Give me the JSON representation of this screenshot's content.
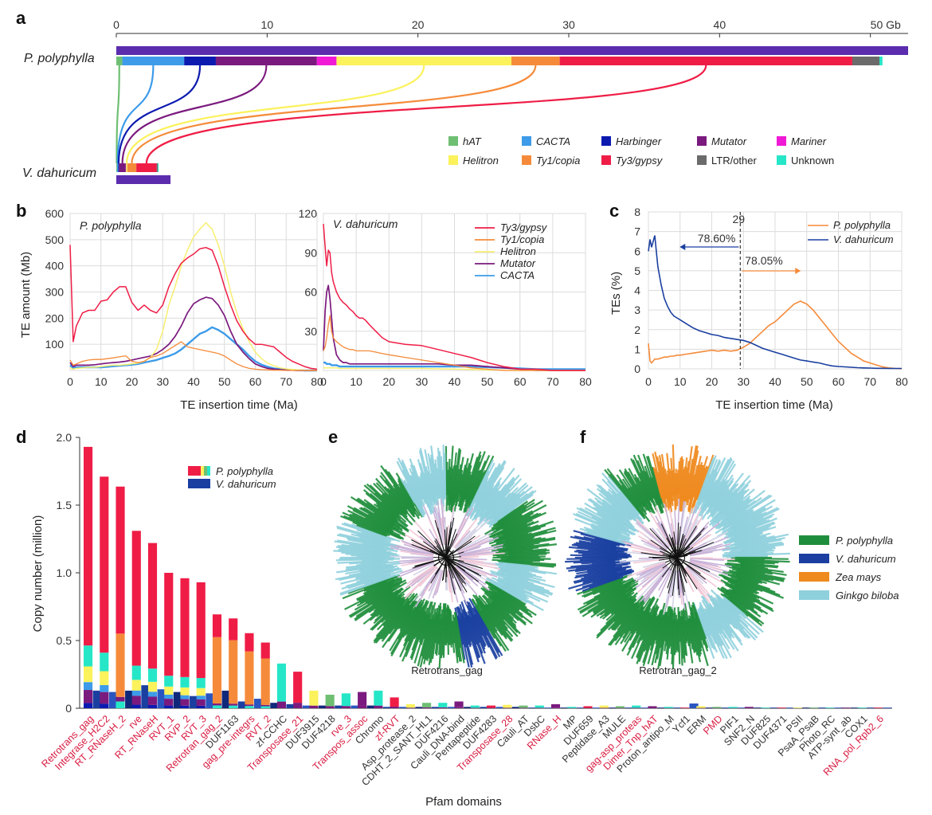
{
  "colors": {
    "hAT": "#6fbf73",
    "CACTA": "#3d9be9",
    "Harbinger": "#0c1ab0",
    "Mutator": "#7b1a7e",
    "Mariner": "#f01ad6",
    "Helitron": "#fbf25c",
    "Ty1/copia": "#f58b3a",
    "Ty3/gypsy": "#ef1d46",
    "LTR/other": "#6b6b6b",
    "Unknown": "#26e6c8",
    "genome": "#5b2cae",
    "pp_tree": "#1f8e3c",
    "vd_tree": "#1a3fa0",
    "zm_tree": "#ee8a1e",
    "gb_tree": "#8fd0dd"
  },
  "panel_labels": [
    "a",
    "b",
    "c",
    "d",
    "e",
    "f"
  ],
  "chart_data": [
    {
      "id": "a",
      "type": "bar",
      "title": "",
      "xlabel": "",
      "x_ticks": [
        "0",
        "10",
        "20",
        "30",
        "40",
        "50 Gb"
      ],
      "xlim": [
        0,
        52.5
      ],
      "genome_labels": [
        "P. polyphylla",
        "V. dahuricum"
      ],
      "genome_size_gb": {
        "P. polyphylla": 52.5,
        "V. dahuricum": 3.6
      },
      "segments_gb": {
        "P. polyphylla": [
          [
            "hAT",
            0.4
          ],
          [
            "CACTA",
            4.1
          ],
          [
            "Harbinger",
            2.1
          ],
          [
            "Mutator",
            6.7
          ],
          [
            "Mariner",
            1.3
          ],
          [
            "Helitron",
            11.6
          ],
          [
            "Ty1/copia",
            3.2
          ],
          [
            "Ty3/gypsy",
            19.4
          ],
          [
            "LTR/other",
            1.8
          ],
          [
            "Unknown",
            0.2
          ]
        ],
        "V. dahuricum": [
          [
            "hAT",
            0.05
          ],
          [
            "CACTA",
            0.08
          ],
          [
            "Harbinger",
            0.05
          ],
          [
            "Mutator",
            0.45
          ],
          [
            "Mariner",
            0.02
          ],
          [
            "Helitron",
            0.08
          ],
          [
            "Ty1/copia",
            0.6
          ],
          [
            "Ty3/gypsy",
            1.35
          ],
          [
            "LTR/other",
            0.08
          ],
          [
            "Unknown",
            0.05
          ]
        ]
      },
      "legend": [
        "hAT",
        "CACTA",
        "Harbinger",
        "Mutator",
        "Mariner",
        "Helitron",
        "Ty1/copia",
        "Ty3/gypsy",
        "LTR/other",
        "Unknown"
      ]
    },
    {
      "id": "b",
      "type": "line",
      "xlabel": "TE insertion time (Ma)",
      "ylabel": "TE amount (Mb)",
      "legend": [
        "Ty3/gypsy",
        "Ty1/copia",
        "Helitron",
        "Mutator",
        "CACTA"
      ],
      "left": {
        "label": "P. polyphylla",
        "xlim": [
          0,
          80
        ],
        "ylim": [
          0,
          600
        ],
        "x_ticks": [
          "0",
          "10",
          "20",
          "30",
          "40",
          "50",
          "60",
          "70",
          "80"
        ],
        "y_ticks": [
          "100",
          "200",
          "300",
          "400",
          "500",
          "600"
        ],
        "x": [
          0,
          1,
          2,
          4,
          6,
          8,
          10,
          12,
          14,
          16,
          18,
          20,
          22,
          24,
          26,
          28,
          30,
          32,
          34,
          36,
          38,
          40,
          42,
          44,
          46,
          48,
          50,
          52,
          54,
          56,
          58,
          60,
          62,
          64,
          66,
          68,
          70,
          72,
          74,
          76,
          78,
          80
        ],
        "series": [
          {
            "name": "Ty3/gypsy",
            "values": [
              480,
              110,
              170,
              220,
              230,
              230,
              265,
              270,
              300,
              320,
              320,
              260,
              230,
              250,
              230,
              220,
              250,
              320,
              370,
              410,
              430,
              445,
              465,
              470,
              460,
              400,
              320,
              250,
              190,
              150,
              120,
              100,
              100,
              95,
              90,
              70,
              50,
              35,
              25,
              15,
              8,
              5
            ]
          },
          {
            "name": "Ty1/copia",
            "values": [
              40,
              20,
              25,
              35,
              40,
              42,
              42,
              45,
              48,
              52,
              56,
              35,
              30,
              35,
              50,
              55,
              65,
              80,
              95,
              110,
              90,
              85,
              80,
              75,
              70,
              65,
              55,
              40,
              25,
              15,
              8,
              5,
              3,
              2,
              1,
              1,
              0,
              0,
              0,
              0,
              0,
              0
            ]
          },
          {
            "name": "Helitron",
            "values": [
              10,
              5,
              8,
              10,
              12,
              12,
              15,
              18,
              20,
              20,
              22,
              25,
              28,
              35,
              50,
              80,
              150,
              250,
              320,
              400,
              460,
              510,
              540,
              565,
              540,
              480,
              400,
              300,
              220,
              160,
              110,
              70,
              45,
              28,
              18,
              10,
              6,
              4,
              2,
              1,
              0,
              0
            ]
          },
          {
            "name": "Mutator",
            "values": [
              30,
              15,
              20,
              20,
              20,
              22,
              25,
              28,
              30,
              32,
              35,
              40,
              45,
              50,
              55,
              65,
              80,
              100,
              130,
              170,
              220,
              255,
              270,
              280,
              275,
              250,
              210,
              150,
              100,
              70,
              45,
              25,
              15,
              8,
              5,
              3,
              2,
              1,
              0,
              0,
              0,
              0
            ]
          },
          {
            "name": "CACTA",
            "values": [
              20,
              10,
              12,
              12,
              12,
              12,
              12,
              14,
              16,
              18,
              20,
              22,
              25,
              30,
              35,
              40,
              48,
              55,
              65,
              80,
              100,
              120,
              140,
              150,
              165,
              155,
              140,
              120,
              100,
              80,
              55,
              35,
              22,
              14,
              8,
              5,
              3,
              2,
              1,
              0,
              0,
              0
            ]
          }
        ]
      },
      "right": {
        "label": "V. dahuricum",
        "xlim": [
          0,
          80
        ],
        "ylim": [
          0,
          120
        ],
        "x_ticks": [
          "0",
          "10",
          "20",
          "30",
          "40",
          "50",
          "60",
          "70",
          "80"
        ],
        "y_ticks": [
          "30",
          "60",
          "90",
          "120"
        ],
        "x": [
          0,
          0.5,
          1,
          1.5,
          2,
          2.5,
          3,
          4,
          5,
          6,
          7,
          8,
          9,
          10,
          11,
          12,
          13,
          14,
          16,
          18,
          20,
          25,
          30,
          35,
          40,
          45,
          50,
          55,
          60,
          65,
          70,
          75,
          80
        ],
        "series": [
          {
            "name": "Ty3/gypsy",
            "values": [
              112,
              95,
              80,
              92,
              90,
              75,
              68,
              60,
              55,
              52,
              50,
              47,
              45,
              42,
              40,
              40,
              38,
              35,
              30,
              25,
              22,
              20,
              19,
              16,
              13,
              10,
              6,
              3,
              1,
              1,
              0,
              0,
              0
            ]
          },
          {
            "name": "Ty1/copia",
            "values": [
              15,
              18,
              25,
              35,
              42,
              30,
              25,
              22,
              20,
              18,
              17,
              16,
              16,
              15,
              15,
              15,
              15,
              15,
              14,
              13,
              12,
              10,
              8,
              6,
              4,
              2,
              1,
              0,
              0,
              0,
              0,
              0,
              0
            ]
          },
          {
            "name": "Helitron",
            "values": [
              2,
              2,
              2,
              2,
              2,
              2,
              2,
              2,
              1.5,
              1.5,
              1.5,
              1.5,
              1.5,
              1.5,
              1.5,
              1.5,
              1.5,
              1.5,
              1.5,
              1.5,
              1.5,
              1.5,
              1.5,
              1.2,
              1,
              0.8,
              0.5,
              0.3,
              0,
              0,
              0,
              0,
              0
            ]
          },
          {
            "name": "Mutator",
            "values": [
              15,
              45,
              60,
              65,
              55,
              40,
              25,
              12,
              8,
              6,
              6,
              5,
              5,
              5,
              5,
              5,
              5,
              5,
              5,
              5,
              5,
              5,
              5,
              5,
              4,
              4,
              3,
              2,
              1,
              0,
              0,
              0,
              0
            ]
          },
          {
            "name": "CACTA",
            "values": [
              6,
              6,
              5,
              5,
              5,
              4,
              4,
              4,
              3,
              3,
              3,
              3,
              3,
              3,
              3,
              3,
              3,
              3,
              3,
              3,
              3,
              3,
              3,
              3,
              3,
              3,
              2.5,
              2,
              1.5,
              1,
              1,
              1,
              1
            ]
          }
        ]
      }
    },
    {
      "id": "c",
      "type": "line",
      "xlabel": "TE insertion time (Ma)",
      "ylabel": "TEs (%)",
      "xlim": [
        0,
        80
      ],
      "ylim": [
        0,
        8
      ],
      "x_ticks": [
        "0",
        "10",
        "20",
        "30",
        "40",
        "50",
        "60",
        "70",
        "80"
      ],
      "y_ticks": [
        "0",
        "1",
        "2",
        "3",
        "4",
        "5",
        "6",
        "7",
        "8"
      ],
      "marker_x": 29,
      "marker_label": "29",
      "annotations": [
        "78.60%",
        "78.05%"
      ],
      "legend": [
        "P. polyphylla",
        "V. dahuricum"
      ],
      "x": [
        0,
        0.5,
        1,
        1.5,
        2,
        2.5,
        3,
        4,
        5,
        6,
        7,
        8,
        9,
        10,
        12,
        14,
        16,
        18,
        20,
        22,
        24,
        26,
        28,
        30,
        32,
        34,
        36,
        38,
        40,
        42,
        44,
        46,
        48,
        50,
        52,
        54,
        56,
        58,
        60,
        62,
        64,
        66,
        68,
        70,
        72,
        74,
        76,
        78,
        80
      ],
      "series": [
        {
          "name": "P. polyphylla",
          "values": [
            1.3,
            0.4,
            0.3,
            0.4,
            0.5,
            0.5,
            0.5,
            0.55,
            0.6,
            0.6,
            0.65,
            0.65,
            0.7,
            0.7,
            0.75,
            0.8,
            0.85,
            0.9,
            0.95,
            0.9,
            0.95,
            0.9,
            0.95,
            1.1,
            1.3,
            1.6,
            1.9,
            2.2,
            2.4,
            2.7,
            3.0,
            3.3,
            3.45,
            3.3,
            3.0,
            2.6,
            2.2,
            1.8,
            1.4,
            1.1,
            0.8,
            0.6,
            0.4,
            0.3,
            0.2,
            0.1,
            0.05,
            0.02,
            0.01
          ]
        },
        {
          "name": "V. dahuricum",
          "values": [
            6.0,
            6.6,
            6.2,
            6.5,
            6.8,
            6.0,
            5.2,
            4.3,
            3.6,
            3.2,
            2.9,
            2.7,
            2.6,
            2.5,
            2.3,
            2.1,
            1.95,
            1.85,
            1.75,
            1.7,
            1.6,
            1.55,
            1.5,
            1.45,
            1.35,
            1.2,
            1.05,
            0.95,
            0.85,
            0.75,
            0.65,
            0.55,
            0.45,
            0.4,
            0.35,
            0.3,
            0.22,
            0.15,
            0.12,
            0.1,
            0.08,
            0.06,
            0.05,
            0.04,
            0.03,
            0.03,
            0.02,
            0.02,
            0.02
          ]
        }
      ]
    },
    {
      "id": "d",
      "type": "bar",
      "xlabel": "Pfam domains",
      "ylabel": "Copy number (million)",
      "ylim": [
        0,
        2.0
      ],
      "y_ticks": [
        "0",
        "0.5",
        "1.0",
        "1.5",
        "2.0"
      ],
      "legend": [
        "P. polyphylla",
        "V. dahuricum"
      ],
      "categories": [
        "Retrotrans_gag",
        "Integrase_H2C2",
        "RT_RNaseH_2",
        "rve",
        "RT_RNaseH",
        "RVT_1",
        "RVP_2",
        "RVT_3",
        "Retrotran_gag_2",
        "DUF1163",
        "gag_pre-integrs",
        "RVT_2",
        "zf-CCHC",
        "Transposase_21",
        "DUF3915",
        "DUF4218",
        "rve_3",
        "Transpos_assoc",
        "Chromo",
        "zf-RVT",
        "Asp_protease_2",
        "CDHT_2_SANT_HL1",
        "DUF4216",
        "Cauli_DNA-bind",
        "Pentapeptide",
        "DUF4283",
        "Transposase_28",
        "Cauli_AT",
        "DsbC",
        "RNase_H",
        "MP",
        "DUF659",
        "Peptidase_A3",
        "MULE",
        "gag-asp_proteas",
        "Dimer_Tnp_hAT",
        "Proton_antipo_M",
        "Ycf1",
        "ERM",
        "PMD",
        "PIF1",
        "SNF2_N",
        "DUF825",
        "DUF4371",
        "PSII",
        "PsaA_PsaB",
        "Photo_RC",
        "ATP-synt_ab",
        "COX1",
        "RNA_pol_Rpb2_6"
      ],
      "highlighted_red": [
        "Retrotrans_gag",
        "Integrase_H2C2",
        "RT_RNaseH_2",
        "rve",
        "RT_RNaseH",
        "RVT_1",
        "RVP_2",
        "RVT_3",
        "Retrotran_gag_2",
        "gag_pre-integrs",
        "RVT_2",
        "Transposase_21",
        "rve_3",
        "Transpos_assoc",
        "zf-RVT",
        "Transposase_28",
        "RNase_H",
        "gag-asp_proteas",
        "Dimer_Tnp_hAT",
        "PMD",
        "RNA_pol_Rpb2_6"
      ],
      "pp_total": [
        1.93,
        1.71,
        1.67,
        1.31,
        1.22,
        1.0,
        0.96,
        0.93,
        0.7,
        0.67,
        0.56,
        0.49,
        0.33,
        0.27,
        0.13,
        0.1,
        0.11,
        0.12,
        0.13,
        0.08,
        0.03,
        0.04,
        0.04,
        0.05,
        0.02,
        0.02,
        0.025,
        0.02,
        0.02,
        0.03,
        0.01,
        0.015,
        0.02,
        0.015,
        0.02,
        0.015,
        0.01,
        0.005,
        0.015,
        0.01,
        0.01,
        0.01,
        0.005,
        0.005,
        0.005,
        0.005,
        0.005,
        0.005,
        0.005,
        0.005
      ],
      "vd_total": [
        0.13,
        0.12,
        0.13,
        0.17,
        0.14,
        0.12,
        0.09,
        0.11,
        0.13,
        0.05,
        0.07,
        0.04,
        0.03,
        0.02,
        0.02,
        0.02,
        0.02,
        0.02,
        0.01,
        0.01,
        0.01,
        0.01,
        0.01,
        0.01,
        0.01,
        0.01,
        0.01,
        0.005,
        0.005,
        0.005,
        0.005,
        0.005,
        0.005,
        0.005,
        0.005,
        0.005,
        0.005,
        0.035,
        0.005,
        0.005,
        0.005,
        0.005,
        0.005,
        0.005,
        0.005,
        0.005,
        0.005,
        0.005,
        0.005,
        0.005
      ]
    },
    {
      "id": "e",
      "type": "other",
      "kind": "phylogenetic-tree",
      "label": "Retrotrans_gag",
      "legend": [
        "P. polyphylla",
        "V. dahuricum",
        "Zea mays",
        "Ginkgo biloba"
      ]
    },
    {
      "id": "f",
      "type": "other",
      "kind": "phylogenetic-tree",
      "label": "Retrotran_gag_2",
      "legend": [
        "P. polyphylla",
        "V. dahuricum",
        "Zea mays",
        "Ginkgo biloba"
      ]
    }
  ]
}
